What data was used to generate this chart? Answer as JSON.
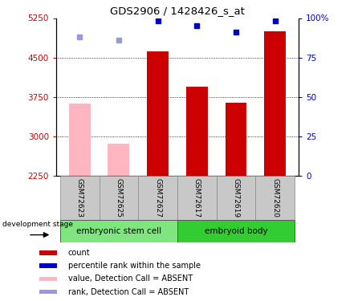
{
  "title": "GDS2906 / 1428426_s_at",
  "samples": [
    "GSM72623",
    "GSM72625",
    "GSM72627",
    "GSM72617",
    "GSM72619",
    "GSM72620"
  ],
  "bar_values": [
    3620,
    2870,
    4620,
    3950,
    3640,
    5000
  ],
  "bar_absent": [
    true,
    true,
    false,
    false,
    false,
    false
  ],
  "rank_values": [
    88,
    86,
    98,
    95,
    91,
    98
  ],
  "rank_absent": [
    true,
    true,
    false,
    false,
    false,
    false
  ],
  "ylim_left": [
    2250,
    5250
  ],
  "ylim_right": [
    0,
    100
  ],
  "yticks_left": [
    2250,
    3000,
    3750,
    4500,
    5250
  ],
  "yticks_right": [
    0,
    25,
    50,
    75,
    100
  ],
  "ytick_labels_right": [
    "0",
    "25",
    "50",
    "75",
    "100%"
  ],
  "groups": [
    {
      "label": "embryonic stem cell",
      "color": "#7FE57F"
    },
    {
      "label": "embryoid body",
      "color": "#33CC33"
    }
  ],
  "group_label": "development stage",
  "bar_color_present": "#CC0000",
  "bar_color_absent": "#FFB6C1",
  "rank_color_present": "#0000CC",
  "rank_color_absent": "#9999DD",
  "rank_marker": "s",
  "rank_marker_size": 5,
  "bar_width": 0.55,
  "tick_label_color_left": "#CC0000",
  "tick_label_color_right": "#0000CC",
  "grid_yticks": [
    3000,
    3750,
    4500
  ],
  "legend_items": [
    {
      "color": "#CC0000",
      "label": "count"
    },
    {
      "color": "#0000CC",
      "label": "percentile rank within the sample"
    },
    {
      "color": "#FFB6C1",
      "label": "value, Detection Call = ABSENT"
    },
    {
      "color": "#9999DD",
      "label": "rank, Detection Call = ABSENT"
    }
  ]
}
